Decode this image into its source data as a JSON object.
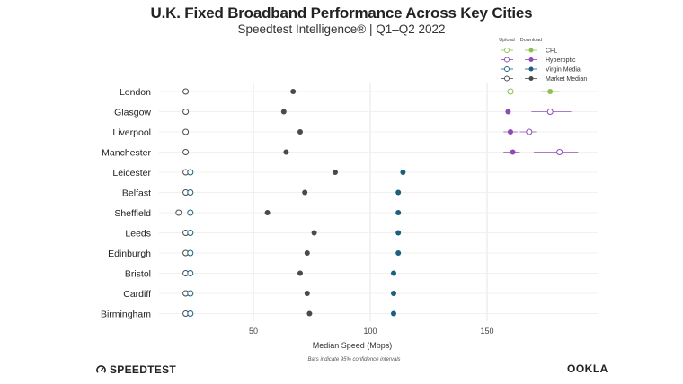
{
  "header": {
    "title": "U.K. Fixed Broadband Performance Across Key Cities",
    "subtitle": "Speedtest Intelligence® | Q1–Q2 2022"
  },
  "footer": {
    "brand_left": "SPEEDTEST",
    "brand_right": "OOKLA"
  },
  "colors": {
    "CFL": "#8cc152",
    "Hyperoptic": "#8e4bb5",
    "Virgin Media": "#1d5f7e",
    "Market Median": "#4a4a4a",
    "grid": "#e6e6e6"
  },
  "chart_data": {
    "type": "scatter",
    "title": "U.K. Fixed Broadband Performance Across Key Cities",
    "subtitle": "Speedtest Intelligence® | Q1–Q2 2022",
    "xlabel": "Median Speed (Mbps)",
    "note": "Bars indicate 95% confidence intervals",
    "xlim": [
      0,
      200
    ],
    "xticks": [
      50,
      100,
      150
    ],
    "grid": true,
    "legend": {
      "position": "top-right",
      "column_headers": [
        "Upload",
        "Download"
      ],
      "entries": [
        "CFL",
        "Hyperoptic",
        "Virgin Media",
        "Market Median"
      ]
    },
    "categories": [
      "London",
      "Glasgow",
      "Liverpool",
      "Manchester",
      "Leicester",
      "Belfast",
      "Sheffield",
      "Leeds",
      "Edinburgh",
      "Bristol",
      "Cardiff",
      "Birmingham"
    ],
    "series": [
      {
        "provider": "Market Median",
        "metric": "Upload",
        "values": [
          21,
          21,
          21,
          21,
          21,
          21,
          18,
          21,
          21,
          21,
          21,
          21
        ]
      },
      {
        "provider": "Market Median",
        "metric": "Download",
        "values": [
          67,
          63,
          70,
          64,
          85,
          72,
          56,
          76,
          73,
          70,
          73,
          74
        ]
      },
      {
        "provider": "Virgin Media",
        "metric": "Upload",
        "values": [
          null,
          null,
          null,
          null,
          23,
          23,
          23,
          23,
          23,
          23,
          23,
          23
        ]
      },
      {
        "provider": "Virgin Media",
        "metric": "Download",
        "values": [
          null,
          null,
          null,
          null,
          114,
          112,
          112,
          112,
          112,
          110,
          110,
          110
        ]
      },
      {
        "provider": "CFL",
        "metric": "Upload",
        "values": [
          160,
          null,
          null,
          null,
          null,
          null,
          null,
          null,
          null,
          null,
          null,
          null
        ]
      },
      {
        "provider": "CFL",
        "metric": "Download",
        "values": [
          177,
          null,
          null,
          null,
          null,
          null,
          null,
          null,
          null,
          null,
          null,
          null
        ]
      },
      {
        "provider": "Hyperoptic",
        "metric": "Upload",
        "values": [
          null,
          177,
          168,
          181,
          null,
          null,
          null,
          null,
          null,
          null,
          null,
          null
        ]
      },
      {
        "provider": "Hyperoptic",
        "metric": "Download",
        "values": [
          null,
          159,
          160,
          161,
          null,
          null,
          null,
          null,
          null,
          null,
          null,
          null
        ]
      }
    ],
    "confidence_intervals": [
      {
        "provider": "CFL",
        "metric": "Download",
        "city": "London",
        "low": 173,
        "high": 181
      },
      {
        "provider": "Hyperoptic",
        "metric": "Upload",
        "city": "Glasgow",
        "low": 169,
        "high": 186
      },
      {
        "provider": "Hyperoptic",
        "metric": "Download",
        "city": "Liverpool",
        "low": 157,
        "high": 163
      },
      {
        "provider": "Hyperoptic",
        "metric": "Upload",
        "city": "Liverpool",
        "low": 164,
        "high": 171
      },
      {
        "provider": "Hyperoptic",
        "metric": "Download",
        "city": "Manchester",
        "low": 157,
        "high": 164
      },
      {
        "provider": "Hyperoptic",
        "metric": "Upload",
        "city": "Manchester",
        "low": 170,
        "high": 189
      }
    ]
  }
}
